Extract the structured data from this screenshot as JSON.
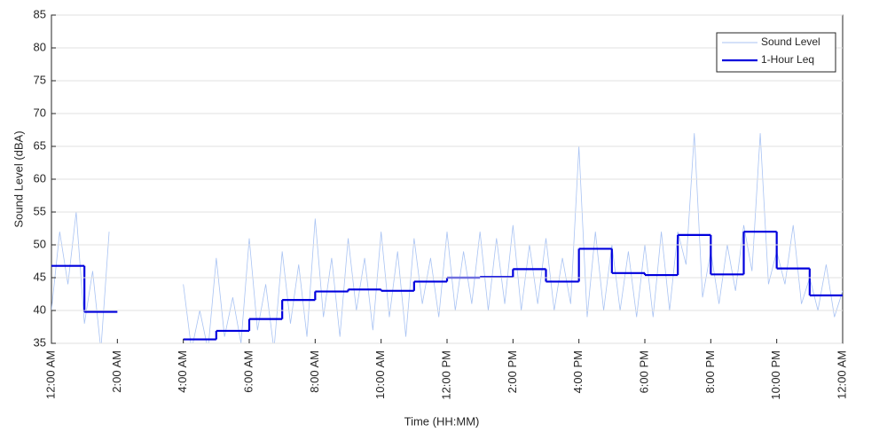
{
  "chart_data": {
    "type": "line",
    "xlabel": "Time (HH:MM)",
    "ylabel": "Sound Level (dBA)",
    "xlim": [
      0,
      24
    ],
    "xticks": [
      {
        "value": 0,
        "label": "12:00 AM"
      },
      {
        "value": 2,
        "label": "2:00 AM"
      },
      {
        "value": 4,
        "label": "4:00 AM"
      },
      {
        "value": 6,
        "label": "6:00 AM"
      },
      {
        "value": 8,
        "label": "8:00 AM"
      },
      {
        "value": 10,
        "label": "10:00 AM"
      },
      {
        "value": 12,
        "label": "12:00 PM"
      },
      {
        "value": 14,
        "label": "2:00 PM"
      },
      {
        "value": 16,
        "label": "4:00 PM"
      },
      {
        "value": 18,
        "label": "6:00 PM"
      },
      {
        "value": 20,
        "label": "8:00 PM"
      },
      {
        "value": 22,
        "label": "10:00 PM"
      },
      {
        "value": 24,
        "label": "12:00 AM"
      }
    ],
    "ylim": [
      35,
      85
    ],
    "yticks": [
      35,
      40,
      45,
      50,
      55,
      60,
      65,
      70,
      75,
      80,
      85
    ],
    "grid": true,
    "legend": "upper right",
    "series": [
      {
        "name": "Sound Level",
        "color": "#a9c3f3",
        "style": "line",
        "x": [
          0,
          0.25,
          0.5,
          0.75,
          1,
          1.25,
          1.5,
          1.75,
          2,
          2.25,
          2.5,
          2.75,
          3,
          3.25,
          3.5,
          3.75,
          4,
          4.25,
          4.5,
          4.75,
          5,
          5.25,
          5.5,
          5.75,
          6,
          6.25,
          6.5,
          6.75,
          7,
          7.25,
          7.5,
          7.75,
          8,
          8.25,
          8.5,
          8.75,
          9,
          9.25,
          9.5,
          9.75,
          10,
          10.25,
          10.5,
          10.75,
          11,
          11.25,
          11.5,
          11.75,
          12,
          12.25,
          12.5,
          12.75,
          13,
          13.25,
          13.5,
          13.75,
          14,
          14.25,
          14.5,
          14.75,
          15,
          15.25,
          15.5,
          15.75,
          16,
          16.25,
          16.5,
          16.75,
          17,
          17.25,
          17.5,
          17.75,
          18,
          18.25,
          18.5,
          18.75,
          19,
          19.25,
          19.5,
          19.75,
          20,
          20.25,
          20.5,
          20.75,
          21,
          21.25,
          21.5,
          21.75,
          22,
          22.25,
          22.5,
          22.75,
          23,
          23.25,
          23.5,
          23.75,
          24
        ],
        "values": [
          40,
          52,
          44,
          55,
          38,
          46,
          34,
          52,
          null,
          null,
          null,
          null,
          null,
          null,
          null,
          null,
          44,
          34,
          40,
          34,
          48,
          36,
          42,
          35,
          51,
          37,
          44,
          34,
          49,
          38,
          47,
          36,
          54,
          39,
          48,
          36,
          51,
          40,
          48,
          37,
          52,
          39,
          49,
          36,
          51,
          41,
          48,
          39,
          52,
          40,
          49,
          41,
          52,
          40,
          51,
          41,
          53,
          40,
          50,
          41,
          51,
          40,
          48,
          41,
          65,
          39,
          52,
          40,
          50,
          40,
          49,
          39,
          50,
          39,
          52,
          40,
          52,
          47,
          67,
          42,
          49,
          41,
          50,
          43,
          53,
          46,
          67,
          44,
          49,
          44,
          53,
          41,
          45,
          40,
          47,
          39,
          43
        ]
      },
      {
        "name": "1-Hour Leq",
        "color": "#0000dd",
        "style": "step",
        "x": [
          0,
          1,
          2,
          3,
          4,
          5,
          6,
          7,
          8,
          9,
          10,
          11,
          12,
          13,
          14,
          15,
          16,
          17,
          18,
          19,
          20,
          21,
          22,
          23
        ],
        "values": [
          46.8,
          39.8,
          null,
          null,
          35.6,
          36.9,
          38.7,
          41.6,
          42.9,
          43.2,
          43.0,
          44.4,
          45.0,
          45.1,
          46.3,
          44.4,
          49.4,
          45.7,
          45.4,
          51.5,
          45.5,
          52.0,
          46.4,
          42.3
        ]
      }
    ]
  }
}
